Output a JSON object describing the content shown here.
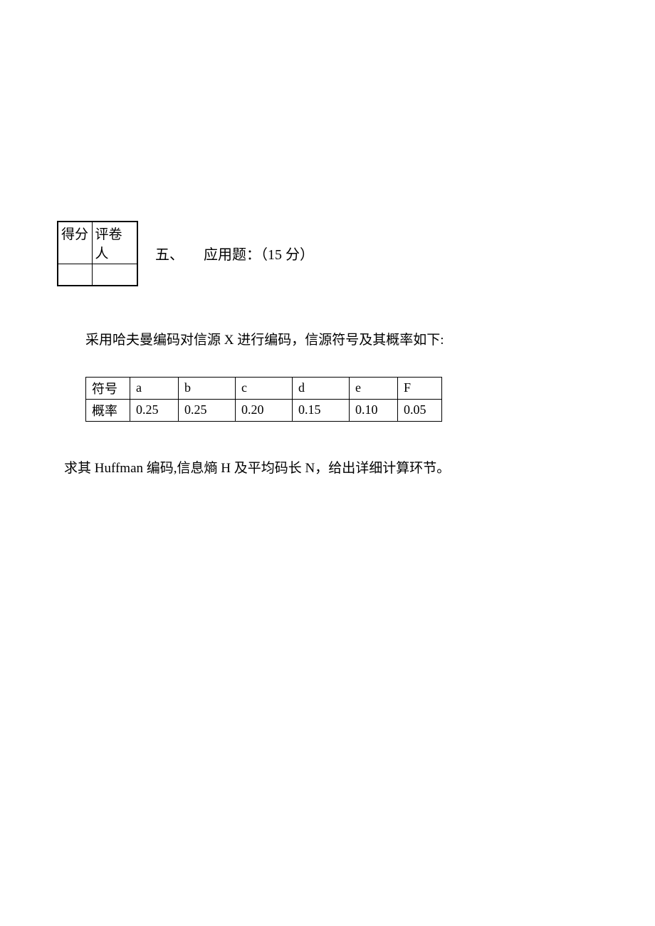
{
  "score_table": {
    "header1": "得分",
    "header2": "评卷人"
  },
  "section": {
    "number": "五、",
    "title": "应用题：（15 分）"
  },
  "problem": {
    "intro": "采用哈夫曼编码对信源 X 进行编码，信源符号及其概率如下:",
    "request_prefix": "求其 ",
    "request_huffman": "Huffman",
    "request_mid1": " 编码,信息熵 ",
    "request_H": "H",
    "request_mid2": " 及平均码长 ",
    "request_N": "N",
    "request_suffix": "，给出详细计算环节。"
  },
  "data_table": {
    "row1_label": "符号",
    "row2_label": "概率",
    "symbols": [
      "a",
      "b",
      "c",
      "d",
      "e",
      "F"
    ],
    "probs": [
      "0.25",
      "0.25",
      "0.20",
      "0.15",
      "0.10",
      "0.05"
    ]
  }
}
